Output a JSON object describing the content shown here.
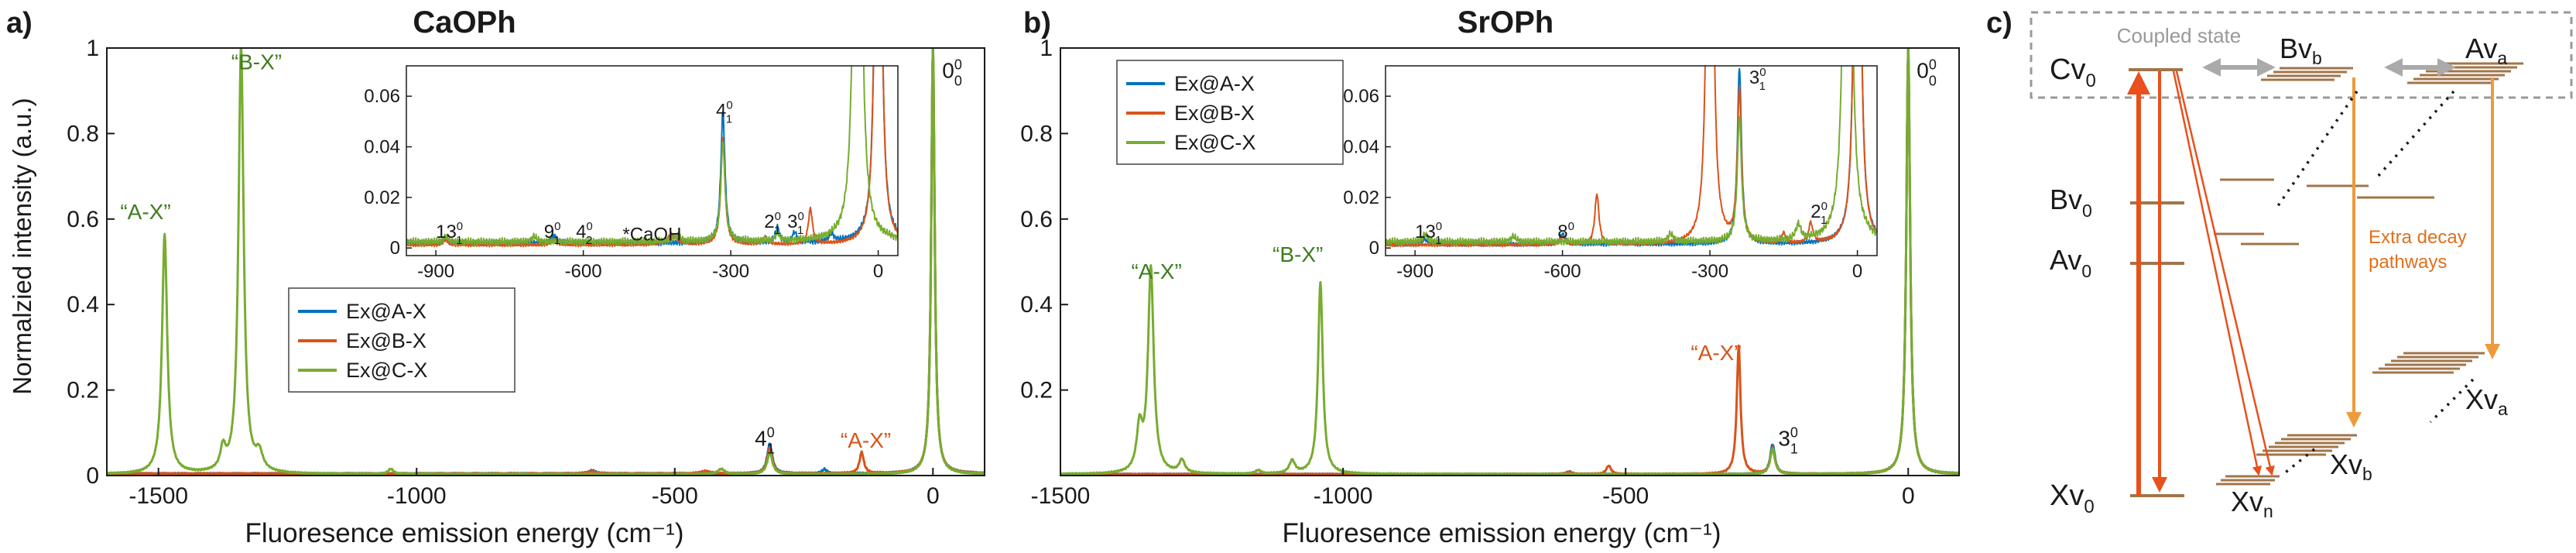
{
  "colors": {
    "blue": "#0072bd",
    "red": "#d95319",
    "green": "#77ac30",
    "darkgreen": "#3e7d1e",
    "orange": "#ee9a3c",
    "brown": "#a0754a",
    "gray": "#888888",
    "text": "#1a1a1a"
  },
  "panel_a": {
    "letter": "a)"
  },
  "panel_b": {
    "letter": "b)"
  },
  "panel_c": {
    "letter": "c)"
  },
  "chart_data": [
    {
      "type": "line",
      "title": "CaOPh",
      "xlabel": "Fluoresence emission energy (cm⁻¹)",
      "ylabel": "Normalzied intensity (a.u.)",
      "xlim": [
        -1600,
        100
      ],
      "ylim": [
        0,
        1
      ],
      "xticks": [
        -1500,
        -1000,
        -500,
        0
      ],
      "xtick_labels": [
        "-1500",
        "-1000",
        "-500",
        "0"
      ],
      "yticks": [
        0,
        0.2,
        0.4,
        0.6,
        0.8,
        1
      ],
      "ytick_labels": [
        "0",
        "0.2",
        "0.4",
        "0.6",
        "0.8",
        "1"
      ],
      "legend": [
        "Ex@A-X",
        "Ex@B-X",
        "Ex@C-X"
      ],
      "legend_position": "middle-left",
      "series": [
        {
          "name": "Ex@A-X",
          "color": "blue",
          "baseline": 0.004,
          "peaks": [
            [
              0,
              1.0,
              4
            ],
            [
              -316,
              0.07,
              6
            ],
            [
              -660,
              0.008,
              8
            ],
            [
              -210,
              0.01,
              6
            ]
          ]
        },
        {
          "name": "Ex@B-X",
          "color": "red",
          "baseline": 0.004,
          "peaks": [
            [
              0,
              1.0,
              4
            ],
            [
              -316,
              0.06,
              6
            ],
            [
              -138,
              0.05,
              5
            ],
            [
              -440,
              0.006,
              12
            ],
            [
              -660,
              0.006,
              8
            ]
          ]
        },
        {
          "name": "Ex@C-X",
          "color": "green",
          "baseline": 0.003,
          "peaks": [
            [
              0,
              1.0,
              4
            ],
            [
              -1340,
              1.0,
              6
            ],
            [
              -1488,
              0.56,
              6
            ],
            [
              -1375,
              0.05,
              6
            ],
            [
              -1305,
              0.04,
              8
            ],
            [
              -1050,
              0.012,
              6
            ],
            [
              -316,
              0.05,
              6
            ],
            [
              -410,
              0.012,
              8
            ]
          ]
        }
      ],
      "annotations": [
        {
          "text": "“B-X”",
          "x": -1310,
          "y": 0.95,
          "color": "darkgreen"
        },
        {
          "text": "“A-X”",
          "x": -1525,
          "y": 0.6,
          "color": "darkgreen"
        },
        {
          "text": "“A-X”",
          "x": -130,
          "y": 0.065,
          "color": "red"
        }
      ],
      "peak_labels": [
        {
          "main": "0",
          "sup": "0",
          "sub": "0",
          "x": 18,
          "y": 0.93
        },
        {
          "main": "4",
          "sup": "0",
          "sub": "1",
          "x": -345,
          "y": 0.07
        }
      ],
      "inset": {
        "xlim": [
          -960,
          40
        ],
        "ylim": [
          -0.003,
          0.072
        ],
        "xticks": [
          -900,
          -600,
          -300,
          0
        ],
        "xtick_labels": [
          "-900",
          "-600",
          "-300",
          "0"
        ],
        "yticks": [
          0,
          0.02,
          0.04,
          0.06
        ],
        "ytick_labels": [
          "0",
          "0.02",
          "0.04",
          "0.06"
        ],
        "series": [
          {
            "name": "Ex@A-X",
            "color": "blue",
            "baseline": 0.002,
            "peaks": [
              [
                0,
                0.5,
                4
              ],
              [
                -316,
                0.052,
                5
              ],
              [
                -660,
                0.003,
                6
              ],
              [
                -880,
                0.002,
                5
              ],
              [
                -205,
                0.006,
                5
              ],
              [
                -170,
                0.004,
                5
              ],
              [
                -95,
                0.003,
                6
              ]
            ]
          },
          {
            "name": "Ex@B-X",
            "color": "red",
            "baseline": 0.0012,
            "peaks": [
              [
                0,
                0.5,
                4
              ],
              [
                -316,
                0.042,
                5
              ],
              [
                -138,
                0.014,
                5
              ],
              [
                -420,
                0.004,
                12
              ],
              [
                -660,
                0.002,
                6
              ],
              [
                -230,
                0.003,
                6
              ],
              [
                -880,
                0.002,
                5
              ]
            ]
          },
          {
            "name": "Ex@C-X",
            "color": "green",
            "baseline": 0.0025,
            "peaks": [
              [
                -42,
                0.5,
                5
              ],
              [
                -316,
                0.04,
                5
              ],
              [
                -410,
                0.002,
                10
              ],
              [
                -205,
                0.003,
                5
              ],
              [
                -880,
                0.002,
                5
              ],
              [
                -700,
                0.002,
                6
              ]
            ]
          }
        ],
        "peak_labels": [
          {
            "main": "13",
            "sup": "0",
            "sub": "1",
            "x": -900,
            "y": 0.004
          },
          {
            "main": "9",
            "sup": "0",
            "sub": "1",
            "x": -680,
            "y": 0.004
          },
          {
            "main": "4",
            "sup": "0",
            "sub": "2",
            "x": -615,
            "y": 0.004
          },
          {
            "main": "4",
            "sup": "0",
            "sub": "1",
            "x": -330,
            "y": 0.052
          },
          {
            "main": "2",
            "sup": "0",
            "sub": "1",
            "x": -232,
            "y": 0.008
          },
          {
            "main": "3",
            "sup": "0",
            "sub": "1",
            "x": -185,
            "y": 0.008
          }
        ],
        "annotation": {
          "text": "*CaOH",
          "x": -520,
          "y": 0.003
        }
      }
    },
    {
      "type": "line",
      "title": "SrOPh",
      "xlabel": "Fluoresence emission energy (cm⁻¹)",
      "ylabel": "",
      "xlim": [
        -1500,
        90
      ],
      "ylim": [
        0,
        1
      ],
      "xticks": [
        -1500,
        -1000,
        -500,
        0
      ],
      "xtick_labels": [
        "-1500",
        "-1000",
        "-500",
        "0"
      ],
      "yticks": [
        0,
        0.2,
        0.4,
        0.6,
        0.8,
        1
      ],
      "ytick_labels": [
        "",
        "0.2",
        "0.4",
        "0.6",
        "0.8",
        "1"
      ],
      "legend": [
        "Ex@A-X",
        "Ex@B-X",
        "Ex@C-X"
      ],
      "legend_position": "top-left",
      "series": [
        {
          "name": "Ex@A-X",
          "color": "blue",
          "baseline": 0.003,
          "peaks": [
            [
              0,
              1.0,
              4
            ],
            [
              -240,
              0.07,
              5
            ],
            [
              -600,
              0.006,
              6
            ]
          ]
        },
        {
          "name": "Ex@B-X",
          "color": "red",
          "baseline": 0.003,
          "peaks": [
            [
              0,
              1.0,
              4
            ],
            [
              -300,
              0.3,
              4
            ],
            [
              -240,
              0.06,
              5
            ],
            [
              -530,
              0.02,
              5
            ],
            [
              -600,
              0.005,
              6
            ]
          ]
        },
        {
          "name": "Ex@C-X",
          "color": "green",
          "baseline": 0.003,
          "peaks": [
            [
              0,
              1.0,
              4
            ],
            [
              -1040,
              0.45,
              5
            ],
            [
              -1340,
              0.48,
              6
            ],
            [
              -1360,
              0.1,
              6
            ],
            [
              -1285,
              0.03,
              6
            ],
            [
              -1090,
              0.03,
              6
            ],
            [
              -240,
              0.06,
              5
            ],
            [
              -1150,
              0.008,
              6
            ]
          ]
        }
      ],
      "annotations": [
        {
          "text": "“A-X”",
          "x": -1330,
          "y": 0.46,
          "color": "darkgreen"
        },
        {
          "text": "“B-X”",
          "x": -1080,
          "y": 0.5,
          "color": "darkgreen"
        },
        {
          "text": "“A-X”",
          "x": -340,
          "y": 0.27,
          "color": "red"
        }
      ],
      "peak_labels": [
        {
          "main": "0",
          "sup": "0",
          "sub": "0",
          "x": 15,
          "y": 0.93
        },
        {
          "main": "3",
          "sup": "0",
          "sub": "1",
          "x": -230,
          "y": 0.07
        }
      ],
      "inset": {
        "xlim": [
          -960,
          40
        ],
        "ylim": [
          -0.003,
          0.072
        ],
        "xticks": [
          -900,
          -600,
          -300,
          0
        ],
        "xtick_labels": [
          "-900",
          "-600",
          "-300",
          "0"
        ],
        "yticks": [
          0,
          0.02,
          0.04,
          0.06
        ],
        "ytick_labels": [
          "0",
          "0.02",
          "0.04",
          "0.06"
        ],
        "series": [
          {
            "name": "Ex@A-X",
            "color": "blue",
            "baseline": 0.0015,
            "peaks": [
              [
                0,
                0.5,
                4
              ],
              [
                -240,
                0.07,
                5
              ],
              [
                -600,
                0.004,
                6
              ],
              [
                -880,
                0.002,
                5
              ],
              [
                -480,
                0.001,
                6
              ]
            ]
          },
          {
            "name": "Ex@B-X",
            "color": "red",
            "baseline": 0.0012,
            "peaks": [
              [
                0,
                0.5,
                4
              ],
              [
                -300,
                0.5,
                4
              ],
              [
                -240,
                0.06,
                5
              ],
              [
                -530,
                0.02,
                5
              ],
              [
                -600,
                0.003,
                6
              ],
              [
                -150,
                0.004,
                5
              ],
              [
                -95,
                0.008,
                5
              ]
            ]
          },
          {
            "name": "Ex@C-X",
            "color": "green",
            "baseline": 0.0025,
            "peaks": [
              [
                -20,
                0.5,
                5
              ],
              [
                -240,
                0.05,
                5
              ],
              [
                -120,
                0.006,
                6
              ],
              [
                -880,
                0.003,
                5
              ],
              [
                -380,
                0.003,
                6
              ],
              [
                -700,
                0.002,
                6
              ]
            ]
          }
        ],
        "peak_labels": [
          {
            "main": "13",
            "sup": "0",
            "sub": "1",
            "x": -900,
            "y": 0.004
          },
          {
            "main": "8",
            "sup": "0",
            "sub": "",
            "x": -610,
            "y": 0.004
          },
          {
            "main": "3",
            "sup": "0",
            "sub": "1",
            "x": -220,
            "y": 0.065
          },
          {
            "main": "2",
            "sup": "0",
            "sub": "1",
            "x": -95,
            "y": 0.012
          }
        ]
      }
    }
  ],
  "diagram_c": {
    "coupled_state": "Coupled state",
    "extra_decay_line1": "Extra decay",
    "extra_decay_line2": "pathways",
    "labels": {
      "cv0": {
        "main": "Cv",
        "sub": "0"
      },
      "bv0": {
        "main": "Bv",
        "sub": "0"
      },
      "av0": {
        "main": "Av",
        "sub": "0"
      },
      "xv0": {
        "main": "Xv",
        "sub": "0"
      },
      "bvb": {
        "main": "Bv",
        "sub": "b"
      },
      "ava": {
        "main": "Av",
        "sub": "a"
      },
      "xva": {
        "main": "Xv",
        "sub": "a"
      },
      "xvb": {
        "main": "Xv",
        "sub": "b"
      },
      "xvn": {
        "main": "Xv",
        "sub": "n"
      }
    }
  }
}
